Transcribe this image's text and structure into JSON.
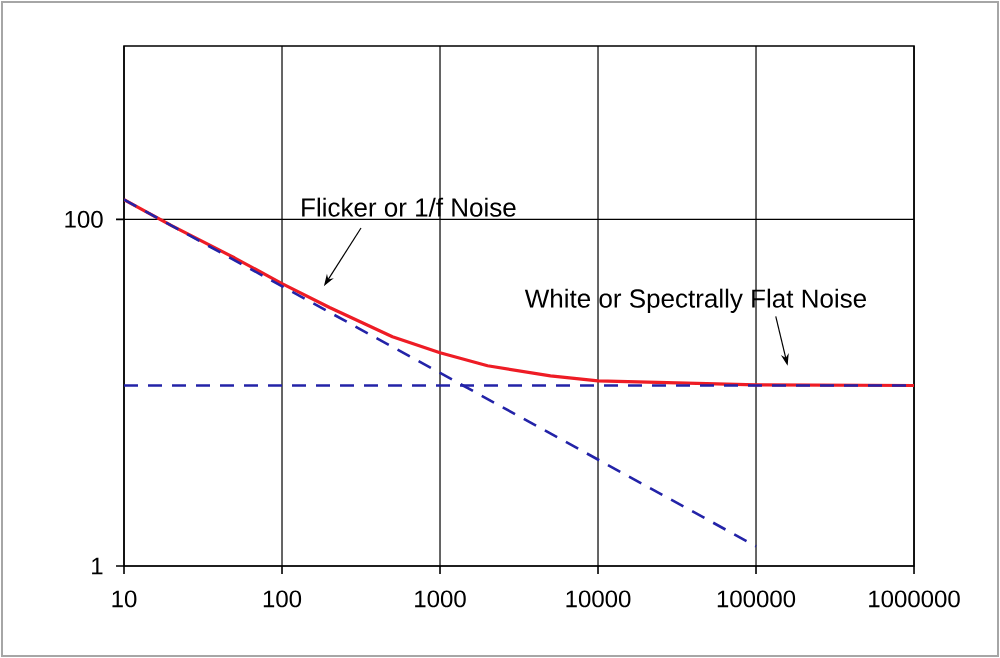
{
  "chart_data": {
    "type": "line",
    "log": "xy",
    "grid": true,
    "xlim": [
      10,
      1000000
    ],
    "ylim": [
      1,
      1000
    ],
    "xticks": [
      10,
      100,
      1000,
      10000,
      100000,
      1000000
    ],
    "yticks": [
      1,
      100
    ],
    "series": [
      {
        "color": "#ee1c25",
        "line_style": "solid",
        "x": [
          10,
          20,
          50,
          100,
          200,
          500,
          1000,
          2000,
          5000,
          10000,
          100000,
          1000000
        ],
        "values": [
          130,
          92,
          60,
          42.6,
          31,
          21,
          17,
          14.3,
          12.5,
          11.7,
          11.1,
          11
        ]
      },
      {
        "color": "#2323a8",
        "line_style": "dashed",
        "x": [
          10,
          100000
        ],
        "values": [
          130,
          1.3
        ]
      },
      {
        "color": "#2323a8",
        "line_style": "dashed",
        "x": [
          10,
          1000000
        ],
        "values": [
          11,
          11
        ]
      }
    ],
    "annotations": [
      "Flicker or 1/f Noise",
      "White or Spectrally Flat Noise"
    ]
  }
}
